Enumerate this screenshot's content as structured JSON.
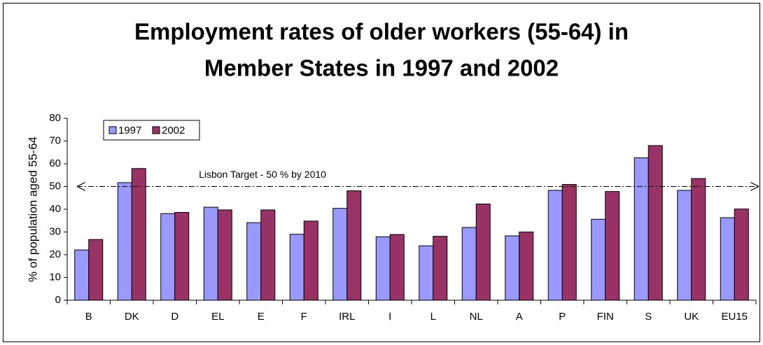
{
  "chart_data": {
    "type": "bar",
    "title": [
      "Employment rates of older workers (55-64) in",
      "Member States in 1997 and 2002"
    ],
    "y_label": "% of population aged 55-64",
    "categories": [
      "B",
      "DK",
      "D",
      "EL",
      "E",
      "F",
      "IRL",
      "I",
      "L",
      "NL",
      "A",
      "P",
      "FIN",
      "S",
      "UK",
      "EU15"
    ],
    "series": [
      {
        "name": "1997",
        "color": "#9999ff",
        "values": [
          22.1,
          51.7,
          38.1,
          40.9,
          34.1,
          29.0,
          40.4,
          27.9,
          23.9,
          32.0,
          28.3,
          48.3,
          35.6,
          62.6,
          48.3,
          36.3
        ]
      },
      {
        "name": "2002",
        "color": "#993366",
        "values": [
          26.7,
          57.9,
          38.6,
          39.7,
          39.7,
          34.8,
          48.1,
          28.9,
          28.1,
          42.3,
          30.0,
          50.9,
          47.8,
          68.0,
          53.5,
          40.1
        ]
      }
    ],
    "target": {
      "label": "Lisbon Target - 50 % by 2010",
      "value": 50
    },
    "ylim": [
      0,
      80
    ],
    "yticks": [
      0,
      10,
      20,
      30,
      40,
      50,
      60,
      70,
      80
    ],
    "grid": false,
    "legend": "top-left"
  }
}
